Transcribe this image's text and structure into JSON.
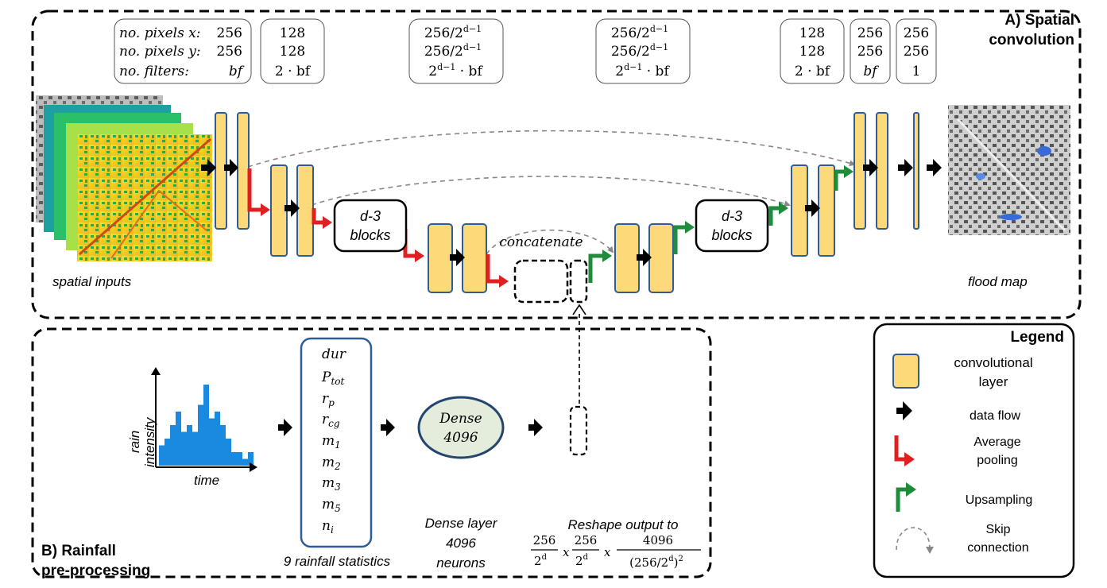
{
  "section_a": {
    "label_line1": "A) Spatial",
    "label_line2": "convolution"
  },
  "section_b": {
    "label_line1": "B) Rainfall",
    "label_line2": "pre-processing"
  },
  "legend": {
    "title": "Legend",
    "conv_line1": "convolutional",
    "conv_line2": "layer",
    "data_flow": "data flow",
    "pool_line1": "Average",
    "pool_line2": "pooling",
    "upsampling": "Upsampling",
    "skip_line1": "Skip",
    "skip_line2": "connection"
  },
  "param_boxes": {
    "row_labels": [
      "no. pixels x:",
      "no. pixels y:",
      "no. filters:"
    ],
    "first_values": [
      "256",
      "256",
      "bf"
    ],
    "second": [
      "128",
      "128",
      "2 · bf"
    ],
    "third": [
      "256/2",
      "d−1",
      "256/2",
      "d−1",
      "2",
      "d−1",
      " · bf"
    ],
    "fourth": [
      "256/2",
      "d−1",
      "256/2",
      "d−1",
      "2",
      "d−1",
      " · bf"
    ],
    "fifth": [
      "128",
      "128",
      "2 · bf"
    ],
    "sixth": [
      "256",
      "256",
      "bf"
    ],
    "seventh": [
      "256",
      "256",
      "1"
    ]
  },
  "blocks_label": [
    "d-3",
    "blocks"
  ],
  "concatenate": "concatenate",
  "spatial_inputs": "spatial inputs",
  "flood_map": "flood map",
  "rain_axis_y": [
    "rain",
    "intensity"
  ],
  "rain_axis_x": "time",
  "rain_bars": [
    3,
    4,
    6,
    8,
    5,
    6,
    5,
    9,
    12,
    7,
    8,
    6,
    4,
    2,
    2,
    1,
    2
  ],
  "stats": [
    "dur",
    "P",
    "tot",
    "r",
    "p",
    "r",
    "cg",
    "m",
    "1",
    "m",
    "2",
    "m",
    "3",
    "m",
    "5",
    "n",
    "i"
  ],
  "stats_caption": "9 rainfall statistics",
  "dense_label": [
    "Dense",
    "4096"
  ],
  "dense_caption": [
    "Dense layer",
    "4096",
    "neurons"
  ],
  "reshape_caption": "Reshape output to",
  "formula": {
    "n256": "256",
    "two": "2",
    "d": "d",
    "x": "x",
    "n4096": "4096",
    "denom": "(256/2",
    "sq": ")",
    "two_exp": "2"
  },
  "colors": {
    "layer_fill": "#fdd97a",
    "layer_stroke": "#2e5c9a",
    "pool": "#e02020",
    "up": "#1e8c3a",
    "skip": "#999999",
    "rain": "#1a8ae0",
    "dense_fill": "#e4ecdc",
    "dense_stroke": "#24466e"
  }
}
